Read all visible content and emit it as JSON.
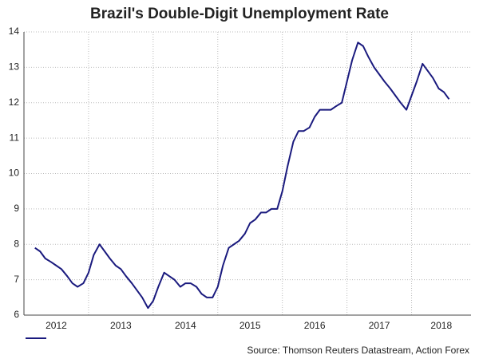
{
  "chart_data": {
    "type": "line",
    "title": "Brazil's Double-Digit Unemployment Rate",
    "source": "Source: Thomson Reuters Datastream, Action Forex",
    "x": [
      2012.17,
      2012.25,
      2012.33,
      2012.42,
      2012.5,
      2012.58,
      2012.67,
      2012.75,
      2012.83,
      2012.92,
      2013.0,
      2013.08,
      2013.17,
      2013.25,
      2013.33,
      2013.42,
      2013.5,
      2013.58,
      2013.67,
      2013.75,
      2013.83,
      2013.92,
      2014.0,
      2014.08,
      2014.17,
      2014.25,
      2014.33,
      2014.42,
      2014.5,
      2014.58,
      2014.67,
      2014.75,
      2014.83,
      2014.92,
      2015.0,
      2015.08,
      2015.17,
      2015.25,
      2015.33,
      2015.42,
      2015.5,
      2015.58,
      2015.67,
      2015.75,
      2015.83,
      2015.92,
      2016.0,
      2016.08,
      2016.17,
      2016.25,
      2016.33,
      2016.42,
      2016.5,
      2016.58,
      2016.67,
      2016.75,
      2016.83,
      2016.92,
      2017.0,
      2017.08,
      2017.17,
      2017.25,
      2017.33,
      2017.42,
      2017.5,
      2017.58,
      2017.67,
      2017.75,
      2017.83,
      2017.92,
      2018.0,
      2018.08,
      2018.17,
      2018.25,
      2018.33,
      2018.42,
      2018.5,
      2018.58
    ],
    "series": [
      {
        "color": "#1a1a7e",
        "values": [
          7.9,
          7.8,
          7.6,
          7.5,
          7.4,
          7.3,
          7.1,
          6.9,
          6.8,
          6.9,
          7.2,
          7.7,
          8.0,
          7.8,
          7.6,
          7.4,
          7.3,
          7.1,
          6.9,
          6.7,
          6.5,
          6.2,
          6.4,
          6.8,
          7.2,
          7.1,
          7.0,
          6.8,
          6.9,
          6.9,
          6.8,
          6.6,
          6.5,
          6.5,
          6.8,
          7.4,
          7.9,
          8.0,
          8.1,
          8.3,
          8.6,
          8.7,
          8.9,
          8.9,
          9.0,
          9.0,
          9.5,
          10.2,
          10.9,
          11.2,
          11.2,
          11.3,
          11.6,
          11.8,
          11.8,
          11.8,
          11.9,
          12.0,
          12.6,
          13.2,
          13.7,
          13.6,
          13.3,
          13.0,
          12.8,
          12.6,
          12.4,
          12.2,
          12.0,
          11.8,
          12.2,
          12.6,
          13.1,
          12.9,
          12.7,
          12.4,
          12.3,
          12.1
        ]
      }
    ],
    "xlim": [
      2012,
      2018.92
    ],
    "xticks": [
      2012,
      2013,
      2014,
      2015,
      2016,
      2017,
      2018
    ],
    "ylim": [
      6,
      14
    ],
    "yticks": [
      6,
      7,
      8,
      9,
      10,
      11,
      12,
      13,
      14
    ],
    "grid": true
  }
}
